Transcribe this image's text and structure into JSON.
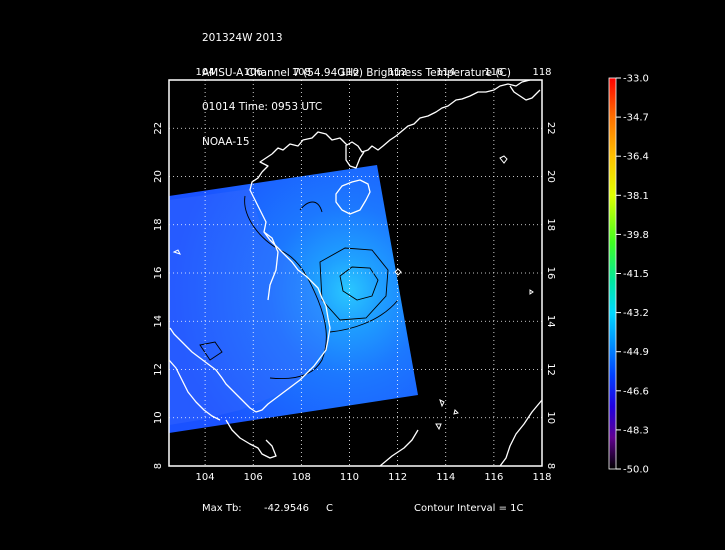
{
  "header": {
    "line1": "201324W 2013",
    "line2": "AMSU-A Channel 7 (54.94GHz) Brightness Temperature (C)",
    "line3": "01014 Time: 0953 UTC",
    "line4": "NOAA-15"
  },
  "map": {
    "lon_range": [
      102.5,
      118
    ],
    "lat_range": [
      8,
      24
    ],
    "lon_ticks": [
      "104",
      "106",
      "108",
      "110",
      "112",
      "114",
      "116",
      "118"
    ],
    "lat_ticks": [
      "8",
      "10",
      "12",
      "14",
      "16",
      "18",
      "20",
      "22"
    ],
    "colors": {
      "coast": "#ffffff",
      "grid": "#ffffff",
      "swath_low": "#1a4dff",
      "swath_mid": "#1e73ff",
      "swath_high": "#22b4ff",
      "contour": "#000000"
    }
  },
  "colorbar": {
    "labels": [
      "-33.0",
      "-34.7",
      "-36.4",
      "-38.1",
      "-39.8",
      "-41.5",
      "-43.2",
      "-44.9",
      "-46.6",
      "-48.3",
      "-50.0"
    ],
    "colors": [
      "#ff0000",
      "#ff6a00",
      "#ffb000",
      "#ffff00",
      "#90ff00",
      "#00e060",
      "#00ffe0",
      "#00a0ff",
      "#0030ff",
      "#6000c0",
      "#000000"
    ]
  },
  "footer": {
    "max_label": "Max Tb:",
    "max_value": "-42.9546",
    "max_unit": "C",
    "contour": "Contour Interval = 1C"
  }
}
